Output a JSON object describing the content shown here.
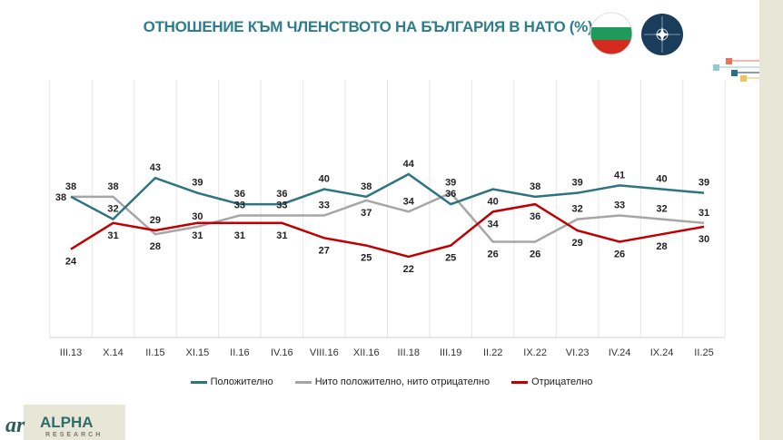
{
  "title": "ОТНОШЕНИЕ КЪМ ЧЛЕНСТВОТО НА БЪЛГАРИЯ В НАТО (%)",
  "logo": {
    "name": "ALPHA",
    "sub": "RESEARCH"
  },
  "icons": [
    "bulgaria-flag-icon",
    "nato-emblem-icon"
  ],
  "chart_data": {
    "type": "line",
    "title": "ОТНОШЕНИЕ КЪМ ЧЛЕНСТВОТО НА БЪЛГАРИЯ В НАТО (%)",
    "categories": [
      "III.13",
      "X.14",
      "II.15",
      "XI.15",
      "II.16",
      "IV.16",
      "VIII.16",
      "XII.16",
      "III.18",
      "III.19",
      "II.22",
      "IX.22",
      "VI.23",
      "IV.24",
      "IX.24",
      "II.25"
    ],
    "series": [
      {
        "name": "Положително",
        "color": "#2e7480",
        "values": [
          38,
          32,
          43,
          39,
          36,
          36,
          40,
          38,
          44,
          36,
          40,
          38,
          39,
          41,
          40,
          39
        ]
      },
      {
        "name": "Нито положително, нито отрицателно",
        "color": "#a6a6a6",
        "values": [
          38,
          38,
          28,
          30,
          33,
          33,
          33,
          37,
          34,
          39,
          26,
          26,
          32,
          33,
          32,
          31
        ]
      },
      {
        "name": "Отрицателно",
        "color": "#c00000",
        "values": [
          24,
          31,
          29,
          31,
          31,
          31,
          27,
          25,
          22,
          25,
          34,
          36,
          29,
          26,
          28,
          30
        ]
      }
    ],
    "legend_position": "bottom",
    "grid": "vertical category separators"
  }
}
